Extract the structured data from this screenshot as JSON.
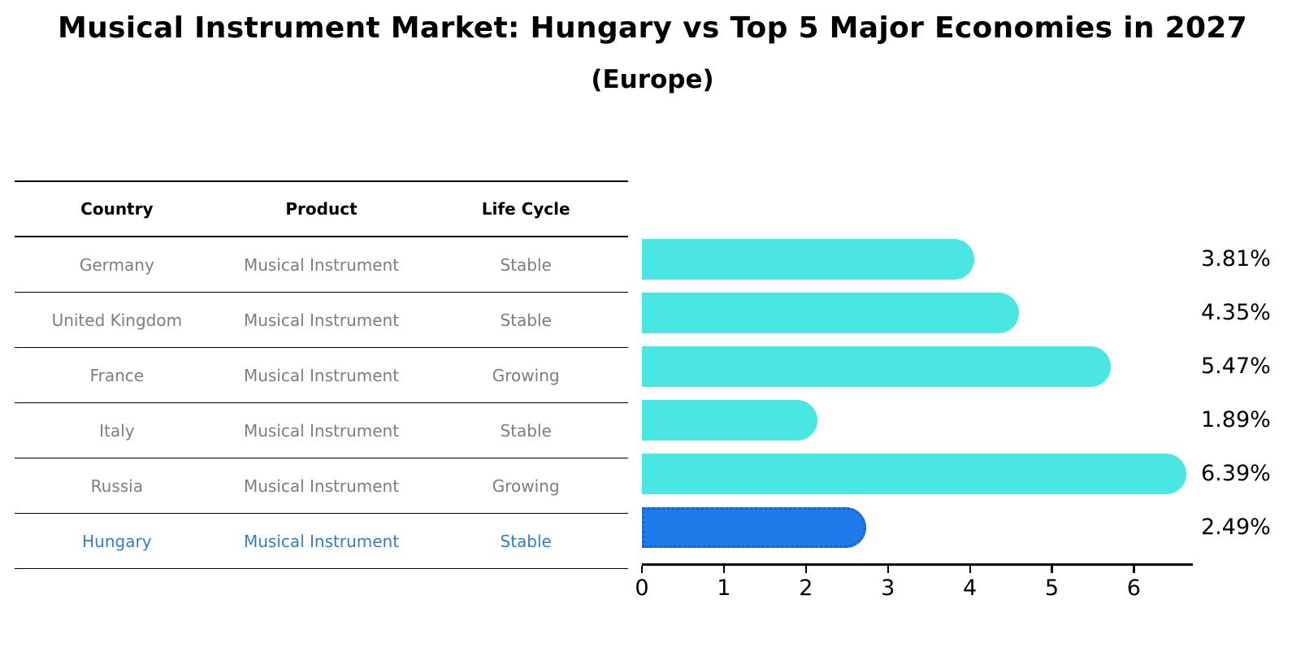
{
  "page": {
    "title": "Musical Instrument Market: Hungary vs Top 5 Major Economies in 2027",
    "subtitle": "(Europe)"
  },
  "table": {
    "headers": [
      "Country",
      "Product",
      "Life Cycle"
    ],
    "rows": [
      {
        "country": "Germany",
        "product": "Musical Instrument",
        "life_cycle": "Stable",
        "highlight": false
      },
      {
        "country": "United Kingdom",
        "product": "Musical Instrument",
        "life_cycle": "Stable",
        "highlight": false
      },
      {
        "country": "France",
        "product": "Musical Instrument",
        "life_cycle": "Growing",
        "highlight": false
      },
      {
        "country": "Italy",
        "product": "Musical Instrument",
        "life_cycle": "Stable",
        "highlight": false
      },
      {
        "country": "Russia",
        "product": "Musical Instrument",
        "life_cycle": "Growing",
        "highlight": false
      },
      {
        "country": "Hungary",
        "product": "Musical Instrument",
        "life_cycle": "Stable",
        "highlight": true
      }
    ]
  },
  "chart_data": {
    "type": "bar",
    "orientation": "horizontal",
    "title": "Musical Instrument Market: Hungary vs Top 5 Major Economies in 2027 (Europe)",
    "categories": [
      "Germany",
      "United Kingdom",
      "France",
      "Italy",
      "Russia",
      "Hungary"
    ],
    "values": [
      3.81,
      4.35,
      5.47,
      1.89,
      6.39,
      2.49
    ],
    "value_labels": [
      "3.81%",
      "4.35%",
      "5.47%",
      "1.89%",
      "6.39%",
      "2.49%"
    ],
    "xlabel": "",
    "ylabel": "",
    "xlim": [
      0,
      6.72
    ],
    "xticks": [
      "0",
      "1",
      "2",
      "3",
      "4",
      "5",
      "6"
    ],
    "grid": false,
    "legend": "none",
    "bar_color": "#4ae6e2",
    "highlight_color": "#1e7ae8",
    "highlight_border_color": "#1461cf",
    "highlight_index": 5
  },
  "colors": {
    "bar_cyan": "#4ae6e2",
    "bar_blue": "#1e7ae8",
    "highlight_text": "#337dc7",
    "row_text": "#7d7d7d",
    "axis": "#000000"
  }
}
